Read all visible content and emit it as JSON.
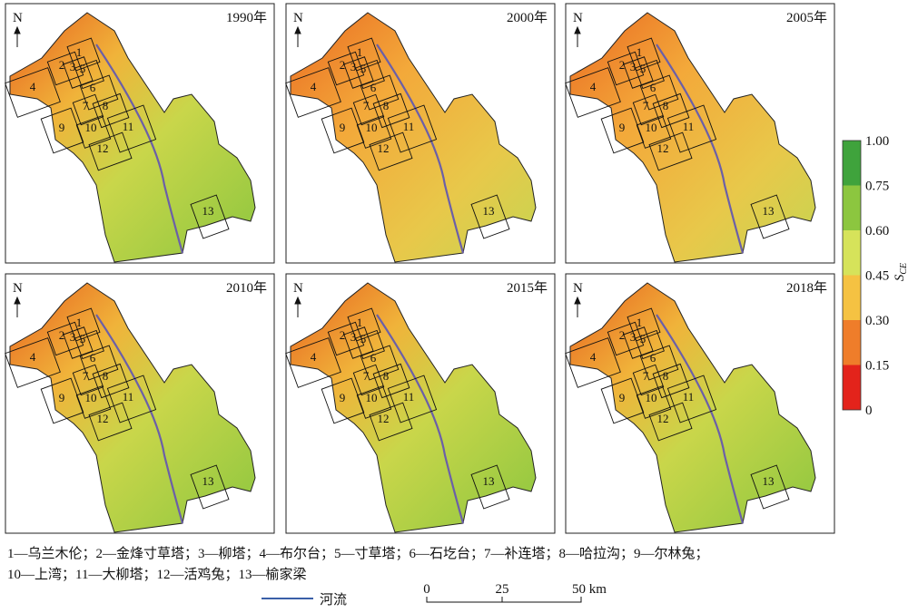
{
  "panels": [
    {
      "year": "1990年"
    },
    {
      "year": "2000年"
    },
    {
      "year": "2005年"
    },
    {
      "year": "2010年"
    },
    {
      "year": "2015年"
    },
    {
      "year": "2018年"
    }
  ],
  "north": "N",
  "zones": [
    "1",
    "2",
    "3",
    "4",
    "5",
    "6",
    "7",
    "8",
    "9",
    "10",
    "11",
    "12",
    "13"
  ],
  "legend": {
    "title": "S",
    "subscript": "CE",
    "ticks": [
      "1.00",
      "0.75",
      "0.60",
      "0.45",
      "0.30",
      "0.15",
      "0"
    ]
  },
  "caption": [
    "1—乌兰木伦；2—金烽寸草塔；3—柳塔；4—布尔台；5—寸草塔；6—石圪台；7—补连塔；8—哈拉沟；9—尔林兔；",
    "10—上湾；11—大柳塔；12—活鸡兔；13—榆家梁"
  ],
  "river": "河流",
  "scale": [
    "0",
    "25",
    "50 km"
  ]
}
